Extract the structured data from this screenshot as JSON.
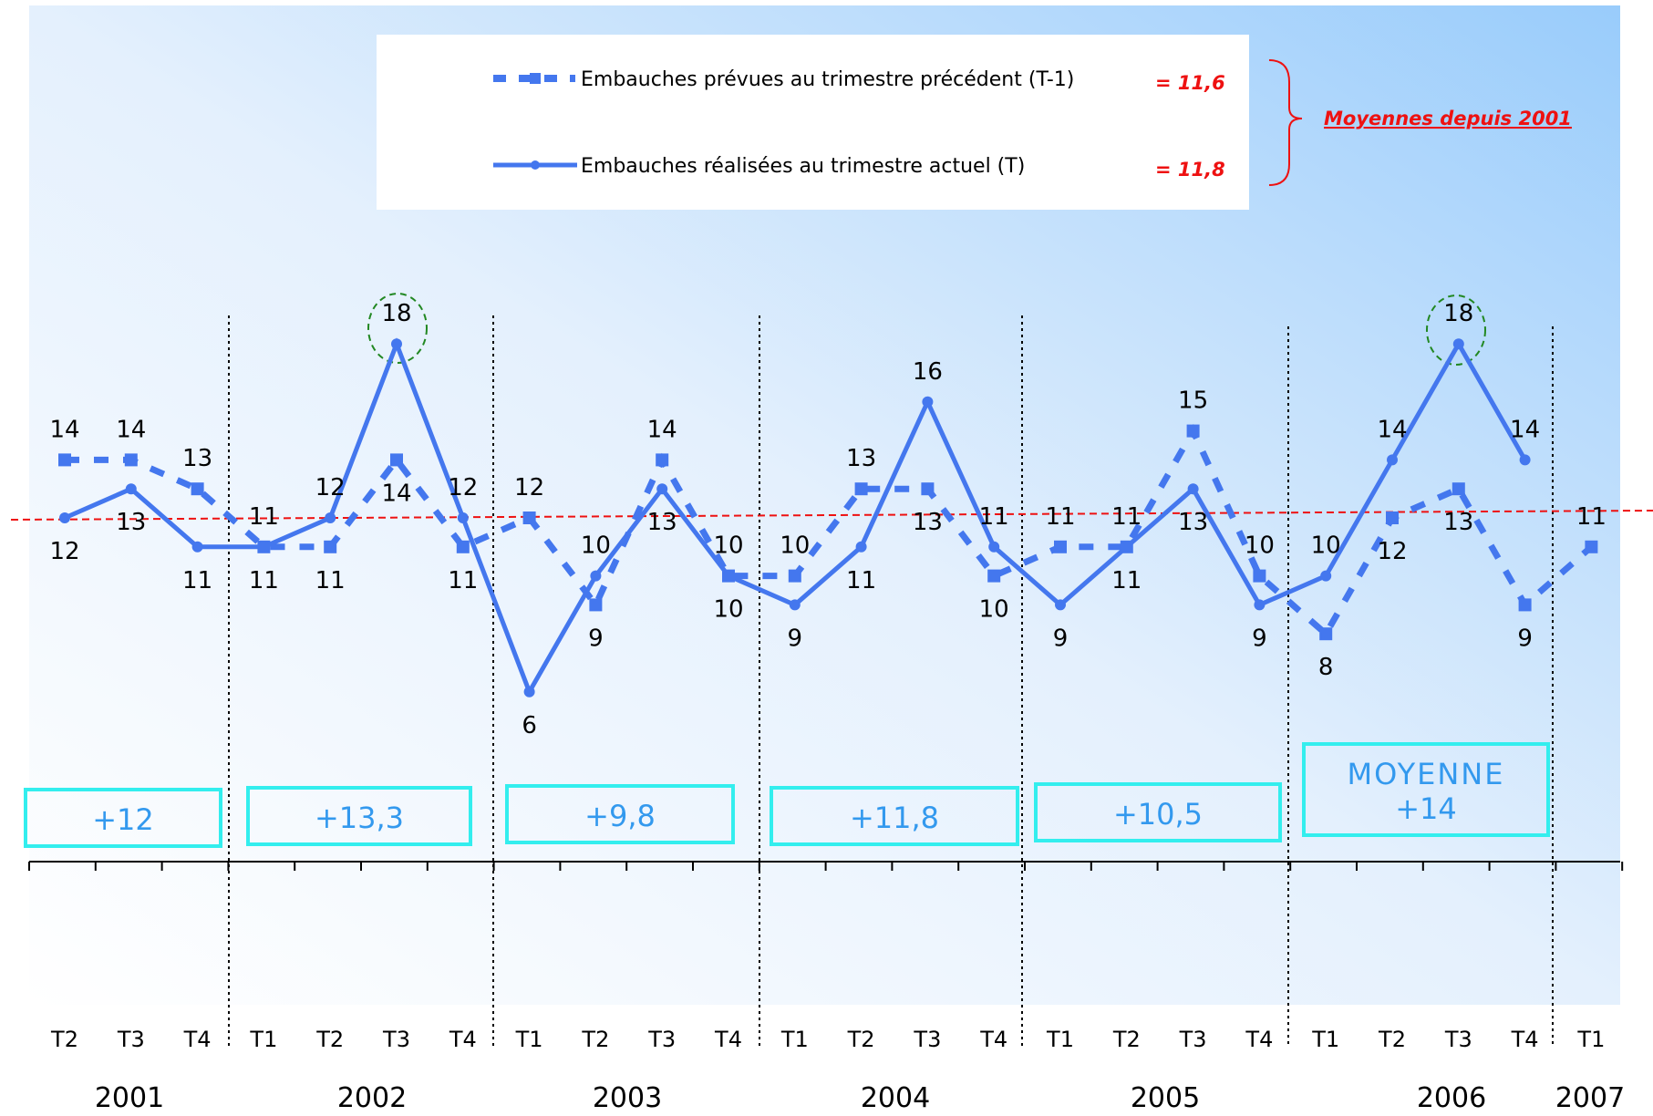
{
  "chart_data": {
    "type": "line",
    "x": [
      "T2",
      "T3",
      "T4",
      "T1",
      "T2",
      "T3",
      "T4",
      "T1",
      "T2",
      "T3",
      "T4",
      "T1",
      "T2",
      "T3",
      "T4",
      "T1",
      "T2",
      "T3",
      "T4",
      "T1",
      "T2",
      "T3",
      "T4",
      "T1"
    ],
    "years": [
      "2001",
      "2002",
      "2003",
      "2004",
      "2005",
      "2006",
      "2007"
    ],
    "series": [
      {
        "name": "Embauches prévues au trimestre précédent (T-1)",
        "style": "dashed-square",
        "color": "#4477ee",
        "values": [
          14,
          14,
          13,
          11,
          11,
          14,
          11,
          12,
          9,
          14,
          10,
          10,
          13,
          13,
          10,
          11,
          11,
          15,
          10,
          8,
          12,
          13,
          9,
          11
        ]
      },
      {
        "name": "Embauches réalisées au trimestre actuel (T)",
        "style": "solid-dot",
        "color": "#4477ee",
        "values": [
          12,
          13,
          11,
          11,
          12,
          18,
          12,
          6,
          10,
          13,
          10,
          9,
          11,
          16,
          11,
          9,
          11,
          13,
          9,
          10,
          14,
          18,
          14,
          null
        ]
      }
    ],
    "averages": [
      {
        "label": "= 11,6"
      },
      {
        "label": "= 11,8"
      }
    ],
    "average_caption": "Moyennes depuis 2001",
    "average_line_value": 11.6,
    "yearly_boxes": [
      "+12",
      "+13,3",
      "+9,8",
      "+11,8",
      "+10,5",
      "MOYENNE\n+14"
    ],
    "highlighted_peaks": [
      "18",
      "18"
    ]
  },
  "labels": {
    "legend_planned": "Embauches prévues au trimestre précédent (T-1)",
    "legend_realised": "Embauches réalisées au trimestre actuel (T)",
    "avg_planned": "= 11,6",
    "avg_realised": "= 11,8",
    "avg_caption": "Moyennes depuis 2001",
    "box_2001": "+12",
    "box_2002": "+13,3",
    "box_2003": "+9,8",
    "box_2004": "+11,8",
    "box_2005": "+10,5",
    "box_2006_line1": "MOYENNE",
    "box_2006_line2": "+14"
  },
  "colors": {
    "series": "#4477ee",
    "average_line": "#ee1111",
    "box_border": "#33eeee",
    "box_text": "#3399ee",
    "peak_circle": "#228822"
  }
}
